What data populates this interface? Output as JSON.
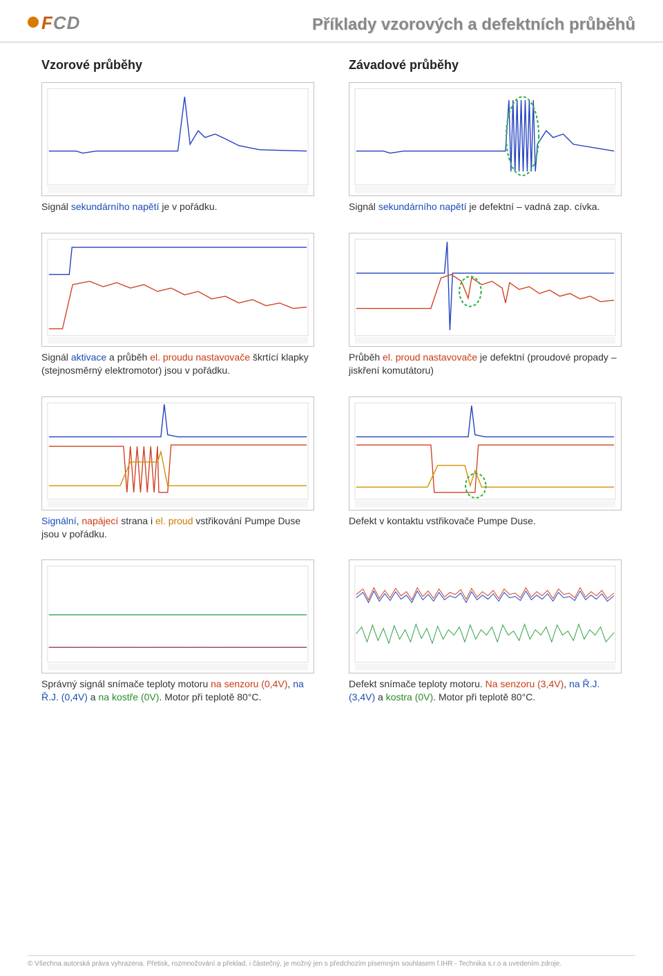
{
  "header": {
    "logo_text": "FCD",
    "title": "Příklady vzorových a defektních průběhů"
  },
  "columns": {
    "left_heading": "Vzorové průběhy",
    "right_heading": "Závadové průběhy"
  },
  "charts": {
    "row1": {
      "left": {
        "caption_html": "Signál <span class='blue'>sekundárního napětí</span> je v pořádku.",
        "line_color": "#2040c0",
        "bg": "#ffffff",
        "border": "#bfbfbf"
      },
      "right": {
        "caption_html": "Signál <span class='blue'>sekundárního napětí</span> je defektní – vadná zap. cívka.",
        "line_color": "#2040c0",
        "bg": "#ffffff",
        "highlight_color": "#35b54a"
      }
    },
    "row2": {
      "left": {
        "caption_html": "Signál <span class='blue'>aktivace</span> a průběh <span class='red'>el. proudu nastavovače</span> škrtící klapky (stejnosměrný elektromotor) jsou v pořádku.",
        "line1_color": "#2040c0",
        "line2_color": "#d04020",
        "bg": "#ffffff"
      },
      "right": {
        "caption_html": "Průběh <span class='red'>el. proud nastavovače</span> je defektní (proudové propady – jiskření <span>komutátoru)</span>",
        "line1_color": "#2040c0",
        "line2_color": "#d04020",
        "highlight_color": "#35b54a"
      }
    },
    "row3": {
      "left": {
        "caption_html": "<span class='blue'>Signální</span>, <span class='red'>napájecí</span> strana i <span class='orange'>el. proud</span> vstřikování Pumpe Duse jsou v pořádku.",
        "line1_color": "#2040c0",
        "line2_color": "#d04020",
        "line3_color": "#d09000"
      },
      "right": {
        "caption_html": "Defekt v kontaktu vstřikovače Pumpe Duse.",
        "line1_color": "#2040c0",
        "line2_color": "#d04020",
        "line3_color": "#d09000",
        "highlight_color": "#35b54a"
      }
    },
    "row4": {
      "left": {
        "caption_html": "Správný signál snímače teploty motoru <span class='red'>na senzoru (0,4V)</span>, <span class='blue'>na Ř.J. (0,4V)</span> a <span class='green'>na kostře (0V)</span>. Motor při teplotě 80°C.",
        "line1_color": "#d04020",
        "line2_color": "#2040c0",
        "line3_color": "#30a040"
      },
      "right": {
        "caption_html": "Defekt snímače teploty motoru. <span class='red'>Na senzoru (3,4V)</span>, <span class='blue'>na Ř.J. (3,4V)</span> a <span class='green'>kostra (0V)</span>. Motor při teplotě 80°C.",
        "line1_color": "#d04020",
        "line2_color": "#2040c0",
        "line3_color": "#30a040"
      }
    }
  },
  "footer": {
    "text": "© Všechna autorská práva vyhrazena. Přetisk, rozmnožování a překlad, i částečný, je možný jen s předchozím písemným souhlasem f.IHR - Technika s.r.o a uvedením zdroje."
  }
}
